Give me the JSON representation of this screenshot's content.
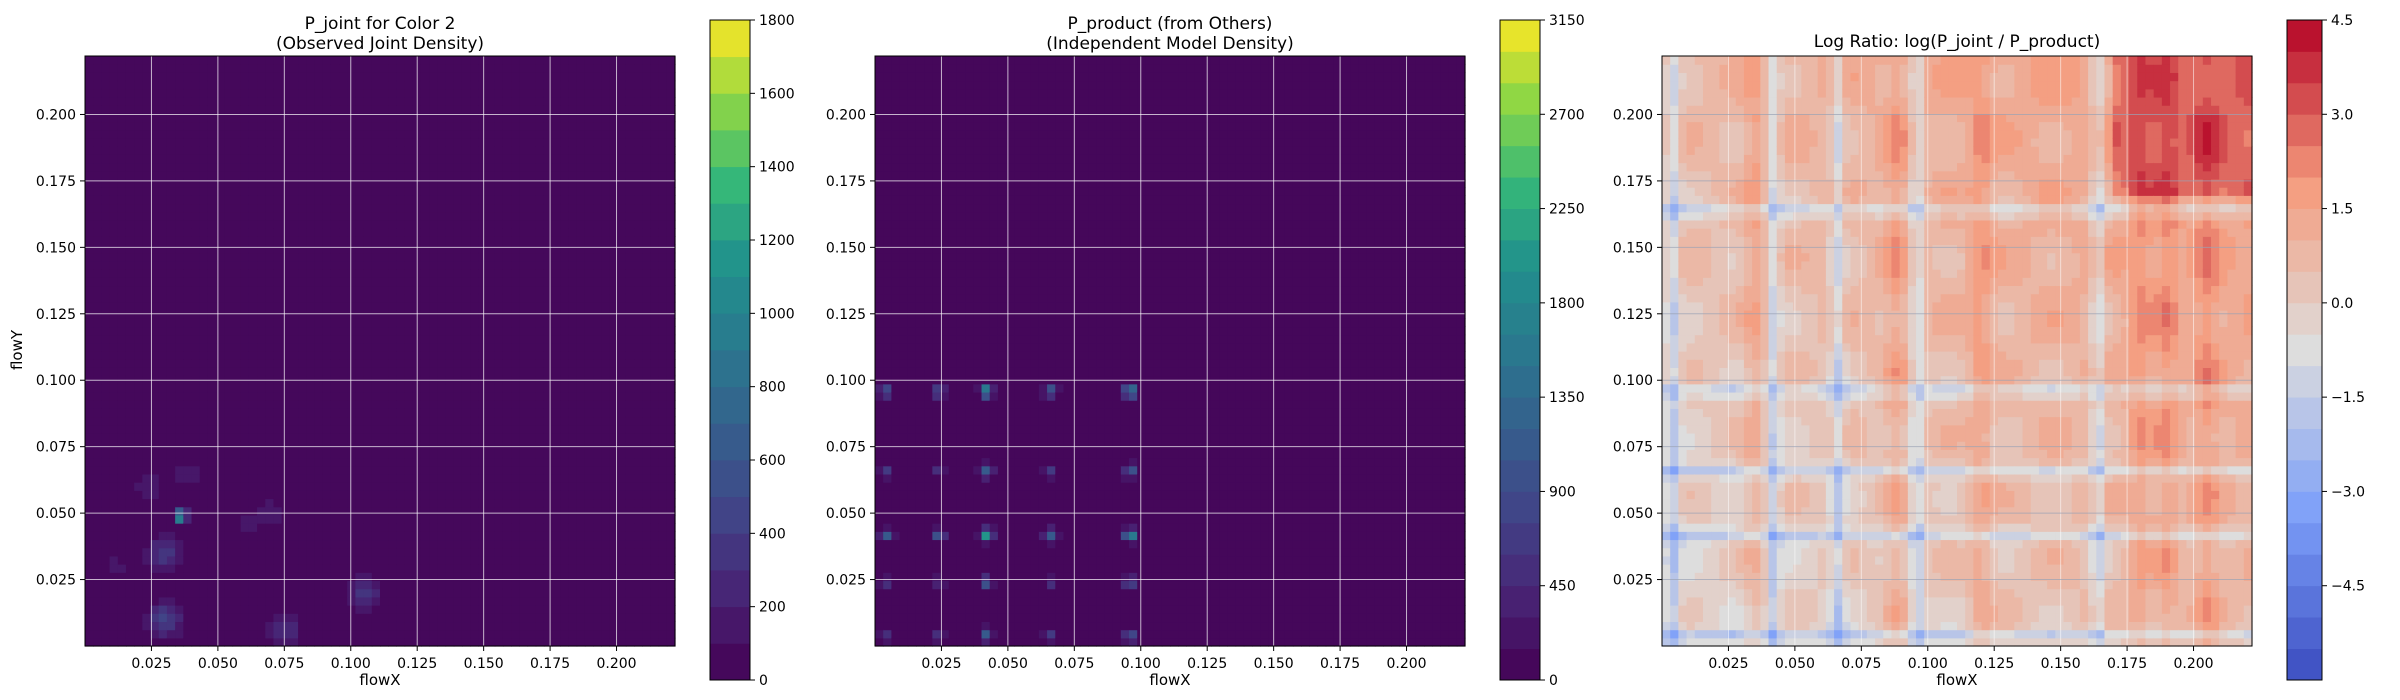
{
  "chart_data": [
    {
      "type": "heatmap",
      "title_lines": [
        "P_joint for Color 2",
        "(Observed Joint Density)"
      ],
      "xlabel": "flowX",
      "ylabel": "flowY",
      "xlim": [
        0.0,
        0.222
      ],
      "ylim": [
        0.0,
        0.222
      ],
      "xticks": [
        0.025,
        0.05,
        0.075,
        0.1,
        0.125,
        0.15,
        0.175,
        0.2
      ],
      "xtick_labels": [
        "0.025",
        "0.050",
        "0.075",
        "0.100",
        "0.125",
        "0.150",
        "0.175",
        "0.200"
      ],
      "yticks": [
        0.025,
        0.05,
        0.075,
        0.1,
        0.125,
        0.15,
        0.175,
        0.2
      ],
      "ytick_labels": [
        "0.025",
        "0.050",
        "0.075",
        "0.100",
        "0.125",
        "0.150",
        "0.175",
        "0.200"
      ],
      "grid": true,
      "colormap": "viridis",
      "colorbar": {
        "range": [
          0,
          1800
        ],
        "levels": 18,
        "ticks": [
          0,
          200,
          400,
          600,
          800,
          1000,
          1200,
          1400,
          1600,
          1800
        ],
        "tick_labels": [
          "0",
          "200",
          "400",
          "600",
          "800",
          "1000",
          "1200",
          "1400",
          "1600",
          "1800"
        ]
      },
      "features": [
        {
          "x": 0.036,
          "y": 0.049,
          "value": 1400
        },
        {
          "x": 0.03,
          "y": 0.035,
          "value": 400
        },
        {
          "x": 0.03,
          "y": 0.01,
          "value": 450
        },
        {
          "x": 0.105,
          "y": 0.02,
          "value": 350
        },
        {
          "x": 0.075,
          "y": 0.006,
          "value": 300
        },
        {
          "x": 0.024,
          "y": 0.06,
          "value": 150
        },
        {
          "x": 0.038,
          "y": 0.065,
          "value": 150
        },
        {
          "x": 0.06,
          "y": 0.045,
          "value": 120
        },
        {
          "x": 0.07,
          "y": 0.05,
          "value": 150
        },
        {
          "x": 0.012,
          "y": 0.03,
          "value": 120
        },
        {
          "x": 0.026,
          "y": 0.1,
          "value": 100
        },
        {
          "x": 0.05,
          "y": 0.02,
          "value": 100
        },
        {
          "x": 0.085,
          "y": 0.03,
          "value": 80
        }
      ]
    },
    {
      "type": "heatmap",
      "title_lines": [
        "P_product (from Others)",
        "(Independent Model Density)"
      ],
      "xlabel": "flowX",
      "ylabel": "",
      "xlim": [
        0.0,
        0.222
      ],
      "ylim": [
        0.0,
        0.222
      ],
      "xticks": [
        0.025,
        0.05,
        0.075,
        0.1,
        0.125,
        0.15,
        0.175,
        0.2
      ],
      "xtick_labels": [
        "0.025",
        "0.050",
        "0.075",
        "0.100",
        "0.125",
        "0.150",
        "0.175",
        "0.200"
      ],
      "yticks": [
        0.025,
        0.05,
        0.075,
        0.1,
        0.125,
        0.15,
        0.175,
        0.2
      ],
      "ytick_labels": [
        "0.025",
        "0.050",
        "0.075",
        "0.100",
        "0.125",
        "0.150",
        "0.175",
        "0.200"
      ],
      "grid": true,
      "colormap": "viridis",
      "colorbar": {
        "range": [
          0,
          3150
        ],
        "levels": 21,
        "ticks": [
          0,
          450,
          900,
          1350,
          1800,
          2250,
          2700,
          3150
        ],
        "tick_labels": [
          "0",
          "450",
          "900",
          "1350",
          "1800",
          "2250",
          "2700",
          "3150"
        ]
      },
      "marginal_peaks": [
        0.004,
        0.024,
        0.042,
        0.066,
        0.096
      ],
      "marginal_strengths": [
        0.55,
        0.5,
        1.0,
        0.55,
        1.0
      ],
      "peak_values": [
        {
          "x": 0.042,
          "y": 0.096,
          "value": 1900
        },
        {
          "x": 0.096,
          "y": 0.096,
          "value": 1900
        },
        {
          "x": 0.042,
          "y": 0.042,
          "value": 1900
        },
        {
          "x": 0.096,
          "y": 0.042,
          "value": 1900
        }
      ]
    },
    {
      "type": "heatmap",
      "title_lines": [
        "Log Ratio: log(P_joint / P_product)"
      ],
      "xlabel": "flowX",
      "ylabel": "",
      "xlim": [
        0.0,
        0.222
      ],
      "ylim": [
        0.0,
        0.222
      ],
      "xticks": [
        0.025,
        0.05,
        0.075,
        0.1,
        0.125,
        0.15,
        0.175,
        0.2
      ],
      "xtick_labels": [
        "0.025",
        "0.050",
        "0.075",
        "0.100",
        "0.125",
        "0.150",
        "0.175",
        "0.200"
      ],
      "yticks": [
        0.025,
        0.05,
        0.075,
        0.1,
        0.125,
        0.15,
        0.175,
        0.2
      ],
      "ytick_labels": [
        "0.025",
        "0.050",
        "0.075",
        "0.100",
        "0.125",
        "0.150",
        "0.175",
        "0.200"
      ],
      "grid": true,
      "colormap": "coolwarm",
      "colorbar": {
        "range": [
          -6.0,
          4.5
        ],
        "levels": 21,
        "ticks": [
          -4.5,
          -3.0,
          -1.5,
          0.0,
          1.5,
          3.0,
          4.5
        ],
        "tick_labels": [
          "−4.5",
          "−3.0",
          "−1.5",
          "0.0",
          "1.5",
          "3.0",
          "4.5"
        ]
      },
      "blue_lines": [
        0.004,
        0.042,
        0.066,
        0.096,
        0.164
      ],
      "red_lines": [
        0.035,
        0.088,
        0.12,
        0.18,
        0.19,
        0.205
      ]
    }
  ]
}
